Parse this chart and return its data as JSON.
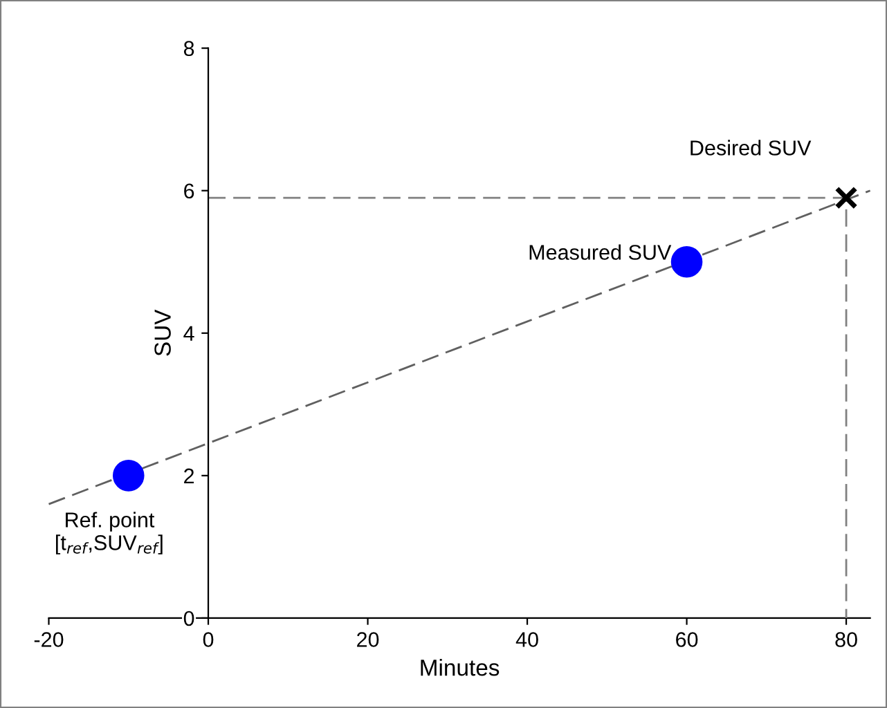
{
  "chart_data": {
    "type": "line",
    "xlabel": "Minutes",
    "ylabel": "SUV",
    "xlim": [
      -20,
      83
    ],
    "ylim": [
      0,
      8
    ],
    "xticks": [
      -20,
      0,
      20,
      40,
      60,
      80
    ],
    "yticks": [
      0,
      2,
      4,
      6,
      8
    ],
    "grid": false,
    "series": [
      {
        "color": "#606060",
        "line_style": "dashed",
        "x": [
          -20,
          83
        ],
        "values": [
          1.6,
          6.0
        ]
      },
      {
        "type": "line",
        "color": "#808080",
        "line_style": "dashed",
        "x": [
          0,
          80,
          80
        ],
        "values": [
          5.9,
          5.9,
          0
        ]
      },
      {
        "type": "scatter",
        "color": "#0000ff",
        "marker": "circle",
        "x": [
          -10
        ],
        "values": [
          2.0
        ]
      },
      {
        "type": "scatter",
        "color": "#0000ff",
        "marker": "circle",
        "x": [
          60
        ],
        "values": [
          5.0
        ]
      },
      {
        "type": "scatter",
        "color": "#000000",
        "marker": "cross",
        "x": [
          80
        ],
        "values": [
          5.9
        ]
      }
    ],
    "annotations": [
      {
        "text": "Desired SUV",
        "x": 80,
        "y": 5.9
      },
      {
        "text": "Measured SUV",
        "x": 60,
        "y": 5.0
      },
      {
        "text": "Ref. point\n[t$_{ref}$,SUV$_{ref}$]",
        "x": -10,
        "y": 2.0
      }
    ]
  }
}
